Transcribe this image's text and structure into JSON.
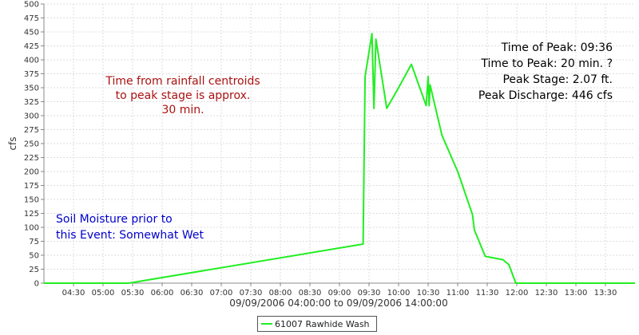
{
  "chart_data": {
    "type": "line",
    "xlabel": "09/09/2006 04:00:00 to 09/09/2006 14:00:00",
    "ylabel": "cfs",
    "ylim": [
      0,
      500
    ],
    "xlim": [
      "04:00",
      "14:00"
    ],
    "grid": true,
    "legend_position": "bottom-center",
    "y_ticks": [
      "0",
      "25",
      "50",
      "75",
      "100",
      "125",
      "150",
      "175",
      "200",
      "225",
      "250",
      "275",
      "300",
      "325",
      "350",
      "375",
      "400",
      "425",
      "450",
      "475",
      "500"
    ],
    "x_ticks": [
      "04:30",
      "05:00",
      "05:30",
      "06:00",
      "06:30",
      "07:00",
      "07:30",
      "08:00",
      "08:30",
      "09:00",
      "09:30",
      "10:00",
      "10:30",
      "11:00",
      "11:30",
      "12:00",
      "12:30",
      "13:00",
      "13:30"
    ],
    "series": [
      {
        "name": "61007 Rawhide Wash",
        "color": "#22ee22",
        "points": [
          [
            "04:00",
            0
          ],
          [
            "05:26",
            0
          ],
          [
            "09:24",
            70
          ],
          [
            "09:26",
            370
          ],
          [
            "09:33",
            447
          ],
          [
            "09:35",
            313
          ],
          [
            "09:37",
            437
          ],
          [
            "09:48",
            313
          ],
          [
            "10:00",
            350
          ],
          [
            "10:13",
            392
          ],
          [
            "10:28",
            318
          ],
          [
            "10:30",
            370
          ],
          [
            "10:31",
            318
          ],
          [
            "10:32",
            355
          ],
          [
            "10:44",
            265
          ],
          [
            "11:00",
            200
          ],
          [
            "11:15",
            123
          ],
          [
            "11:17",
            95
          ],
          [
            "11:28",
            48
          ],
          [
            "11:46",
            42
          ],
          [
            "11:52",
            33
          ],
          [
            "11:59",
            0
          ],
          [
            "14:00",
            0
          ]
        ]
      }
    ]
  },
  "annotations": {
    "rainfall": [
      "Time from rainfall centroids",
      "to peak stage is approx.",
      "30 min."
    ],
    "peak": [
      "Time of Peak: 09:36",
      "Time to Peak: 20 min. ?",
      "Peak Stage: 2.07 ft.",
      "Peak Discharge: 446 cfs"
    ],
    "moisture": [
      "Soil Moisture prior to",
      "this Event: Somewhat Wet"
    ]
  },
  "colors": {
    "rainfall_text": "#aa1111",
    "peak_text": "#000000",
    "moisture_text": "#0000cc",
    "grid": "#dddddd"
  }
}
